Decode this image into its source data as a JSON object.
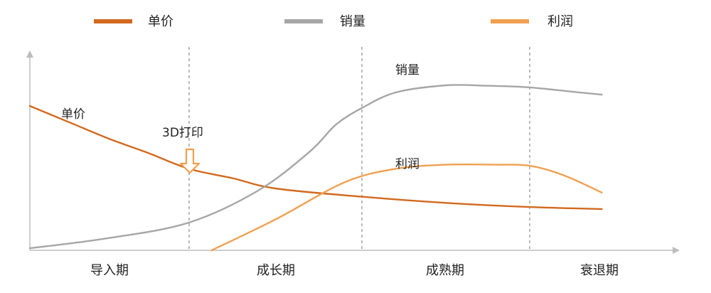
{
  "chart_data": {
    "type": "line",
    "legend": {
      "placement": "top",
      "items": [
        {
          "name": "单价",
          "color": "#D2691E"
        },
        {
          "name": "销量",
          "color": "#A6A6A6"
        },
        {
          "name": "利润",
          "color": "#F0A050"
        }
      ]
    },
    "phases": [
      "导入期",
      "成长期",
      "成熟期",
      "衰退期"
    ],
    "x_unit": "phase boundary index (0 = start, 1 = 导入期/成长期, 2 = 成长期/成熟期, 3 = 成熟期/衰退期)",
    "xlim": [
      0,
      3.45
    ],
    "ylim": [
      0,
      10
    ],
    "grid": false,
    "series": [
      {
        "name": "单价",
        "color": "#D2691E",
        "points": [
          [
            0,
            7.0
          ],
          [
            0.25,
            6.2
          ],
          [
            0.5,
            5.4
          ],
          [
            0.75,
            4.7
          ],
          [
            1,
            3.95
          ],
          [
            1.25,
            3.5
          ],
          [
            1.5,
            3.0
          ],
          [
            2,
            2.6
          ],
          [
            2.5,
            2.3
          ],
          [
            3,
            2.1
          ],
          [
            3.43,
            2.0
          ]
        ]
      },
      {
        "name": "销量",
        "color": "#A6A6A6",
        "points": [
          [
            0,
            0.1
          ],
          [
            0.5,
            0.6
          ],
          [
            1,
            1.35
          ],
          [
            1.4,
            2.9
          ],
          [
            1.7,
            4.8
          ],
          [
            1.85,
            6.1
          ],
          [
            2,
            6.9
          ],
          [
            2.2,
            7.65
          ],
          [
            2.5,
            8.0
          ],
          [
            2.75,
            7.98
          ],
          [
            3,
            7.9
          ],
          [
            3.3,
            7.65
          ],
          [
            3.43,
            7.55
          ]
        ]
      },
      {
        "name": "利润",
        "color": "#F0A050",
        "points": [
          [
            1.13,
            0.0
          ],
          [
            1.5,
            1.5
          ],
          [
            1.9,
            3.3
          ],
          [
            2.2,
            3.95
          ],
          [
            2.5,
            4.15
          ],
          [
            2.8,
            4.15
          ],
          [
            3,
            4.1
          ],
          [
            3.2,
            3.65
          ],
          [
            3.43,
            2.8
          ]
        ]
      }
    ],
    "labels": {
      "price": "单价",
      "volume": "销量",
      "profit": "利润"
    },
    "annotation": {
      "text": "3D打印",
      "x": 1.0,
      "marker": "down-arrow"
    }
  }
}
